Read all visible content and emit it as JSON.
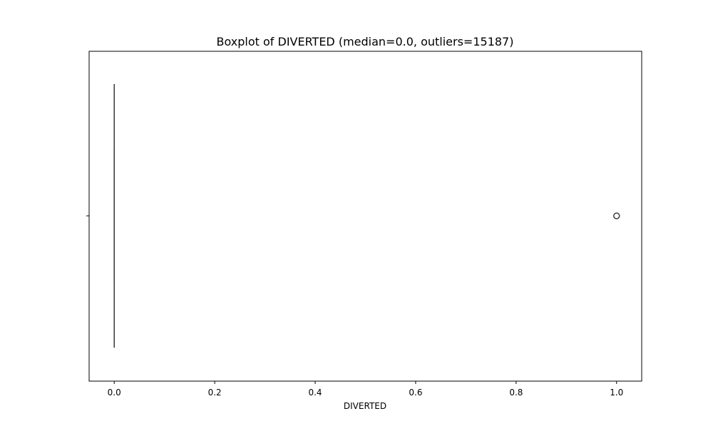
{
  "chart_data": {
    "type": "boxplot",
    "title": "Boxplot of DIVERTED (median=0.0, outliers=15187)",
    "xlabel": "DIVERTED",
    "ylabel": "",
    "orientation": "horizontal",
    "xlim": [
      -0.05,
      1.05
    ],
    "xticks": [
      0.0,
      0.2,
      0.4,
      0.6,
      0.8,
      1.0
    ],
    "xtick_labels": [
      "0.0",
      "0.2",
      "0.4",
      "0.6",
      "0.8",
      "1.0"
    ],
    "grid": false,
    "box": {
      "whisker_low": 0.0,
      "q1": 0.0,
      "median": 0.0,
      "q3": 0.0,
      "whisker_high": 0.0
    },
    "outlier_values": [
      1.0
    ],
    "colors": {
      "box_line": "#3f3f3f",
      "axes": "#000000"
    }
  }
}
